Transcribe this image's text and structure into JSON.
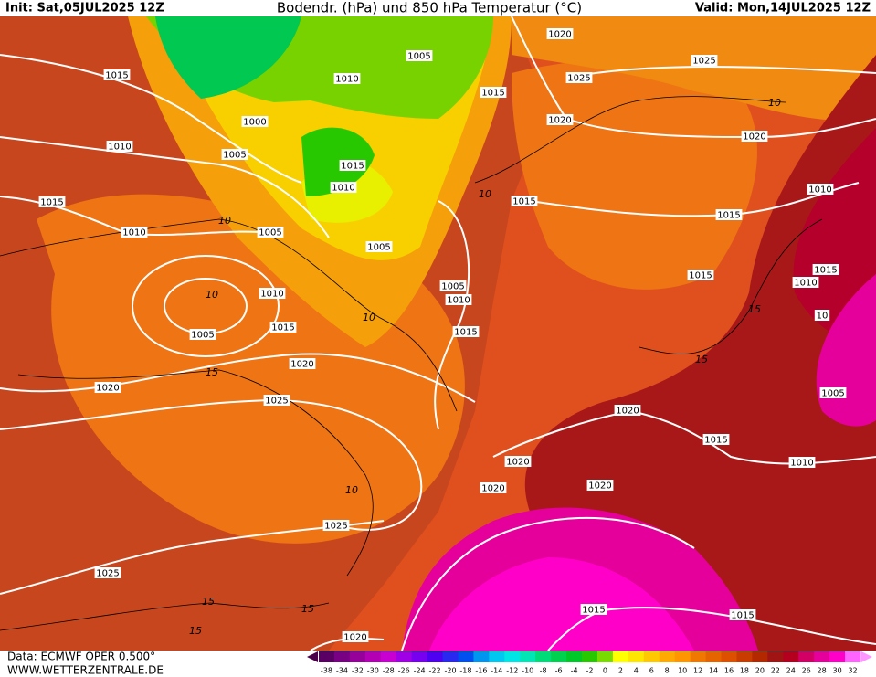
{
  "header": {
    "init": "Init: Sat,05JUL2025 12Z",
    "title": "Bodendr. (hPa) und 850 hPa Temperatur (°C)",
    "valid": "Valid: Mon,14JUL2025 12Z"
  },
  "footer": {
    "data": "Data: ECMWF OPER 0.500°",
    "site": "WWW.WETTERZENTRALE.DE"
  },
  "isobar_labels": [
    "1020",
    "1025",
    "1025",
    "1005",
    "1010",
    "1015",
    "1015",
    "1000",
    "1020",
    "1010",
    "1005",
    "1020",
    "1015",
    "1010",
    "1010",
    "1015",
    "1015",
    "1015",
    "1010",
    "1005",
    "1005",
    "1015",
    "1015",
    "1010",
    "1005",
    "1010",
    "1010",
    "10",
    "1015",
    "1015",
    "1005",
    "1020",
    "1020",
    "1005",
    "1025",
    "1020",
    "1015",
    "1020",
    "1010",
    "1020",
    "1020",
    "1025",
    "1025",
    "1015",
    "1015",
    "1020"
  ],
  "temperature_labels": [
    "10",
    "10",
    "10",
    "10",
    "10",
    "10",
    "15",
    "15",
    "15",
    "15",
    "15",
    "15"
  ],
  "colorbar": {
    "ticks": [
      -38,
      -34,
      -32,
      -30,
      -28,
      -26,
      -24,
      -22,
      -20,
      -18,
      -16,
      -14,
      -12,
      -10,
      -8,
      -6,
      -4,
      -2,
      0,
      2,
      4,
      6,
      8,
      10,
      12,
      14,
      16,
      18,
      20,
      22,
      24,
      26,
      28,
      30,
      32
    ],
    "colors": [
      "#5a0064",
      "#780082",
      "#96009b",
      "#b400b4",
      "#c800d2",
      "#a000e6",
      "#7800f0",
      "#5000f0",
      "#2828f0",
      "#0050f0",
      "#0096f0",
      "#00c8f0",
      "#00e6e6",
      "#00e6b4",
      "#00dc78",
      "#00d250",
      "#00c828",
      "#28c800",
      "#78dc00",
      "#ffff00",
      "#ffe600",
      "#ffc800",
      "#ffaa00",
      "#ff9600",
      "#f07800",
      "#e66400",
      "#dc5000",
      "#c83c00",
      "#b42800",
      "#a01414",
      "#b4001e",
      "#d20064",
      "#e6009b",
      "#ff00c8",
      "#ff64ff"
    ]
  }
}
